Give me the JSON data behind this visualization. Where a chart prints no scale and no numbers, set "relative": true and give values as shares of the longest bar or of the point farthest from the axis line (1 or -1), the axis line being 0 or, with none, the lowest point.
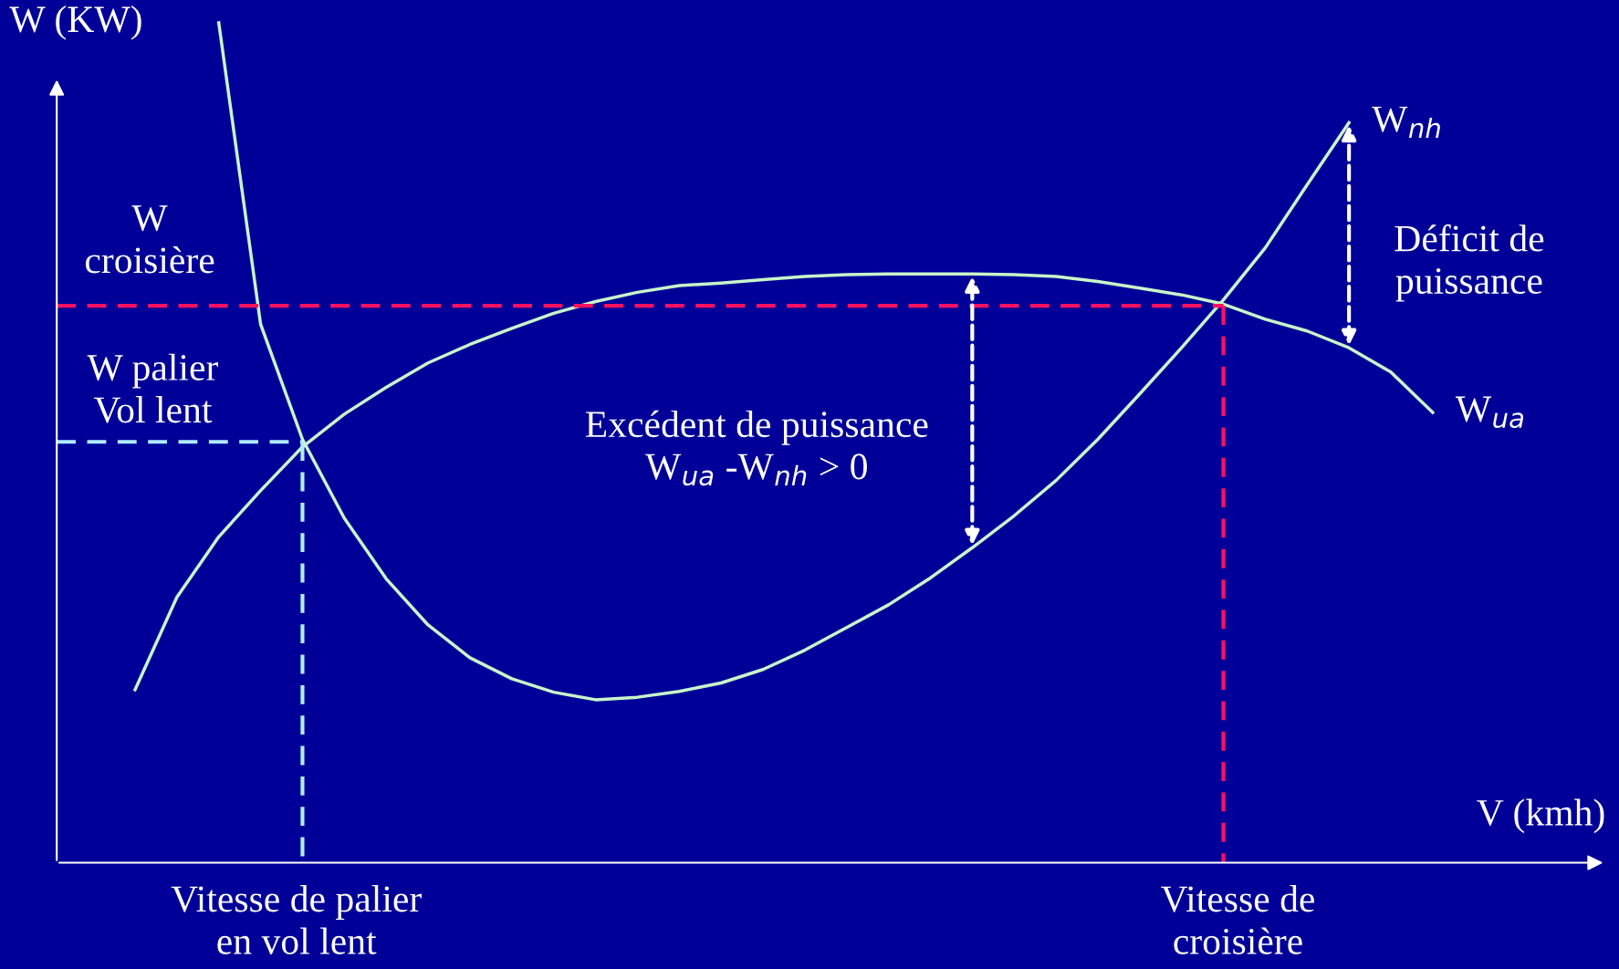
{
  "chart_data": {
    "type": "line",
    "relative": true,
    "xlabel": "V (kmh)",
    "ylabel": "W (KW)",
    "marker": "none",
    "line_style": "solid",
    "categories": [
      null,
      null,
      null,
      null,
      null,
      null,
      null,
      null,
      null,
      null,
      null,
      null,
      null,
      null,
      null,
      null,
      null,
      null,
      null,
      null,
      null,
      null,
      null,
      null,
      null,
      null,
      null,
      null,
      null,
      null,
      null,
      null
    ],
    "series": [
      {
        "name": "W$_{nh}$",
        "color": "#c8f5c8",
        "values": [
          null,
          null,
          1.0,
          0.641,
          0.504,
          0.41,
          0.338,
          0.283,
          0.244,
          0.219,
          0.203,
          0.194,
          0.197,
          0.204,
          0.214,
          0.23,
          0.253,
          0.28,
          0.307,
          0.339,
          0.375,
          0.413,
          0.455,
          0.504,
          0.558,
          0.613,
          0.67,
          0.732,
          0.807,
          0.881,
          null,
          null
        ]
      },
      {
        "name": "W$_{ua}$",
        "color": "#c8f5c8",
        "values": [
          0.206,
          0.316,
          0.388,
          0.443,
          0.495,
          0.534,
          0.566,
          0.595,
          0.617,
          0.636,
          0.654,
          0.668,
          0.679,
          0.687,
          0.69,
          0.694,
          0.698,
          0.7,
          0.701,
          0.701,
          0.701,
          0.7,
          0.698,
          0.692,
          0.684,
          0.676,
          0.665,
          0.647,
          0.633,
          0.613,
          0.584,
          0.536
        ]
      }
    ],
    "ref_lines": [
      {
        "axis": "y",
        "value": 0.663,
        "color": "#ff1060",
        "line_style": "dashed"
      },
      {
        "axis": "y",
        "value": 0.501,
        "color": "#b0ecff",
        "line_style": "dashed"
      }
    ],
    "annotations": [
      "W\ncroisière",
      "W palier\nVol lent",
      "Excédent de puissance\nW$_{ua}$ -W$_{nh}$ > 0",
      "Déficit de\npuissance",
      "Vitesse de palier\nen vol lent",
      "Vitesse de\ncroisière"
    ]
  }
}
